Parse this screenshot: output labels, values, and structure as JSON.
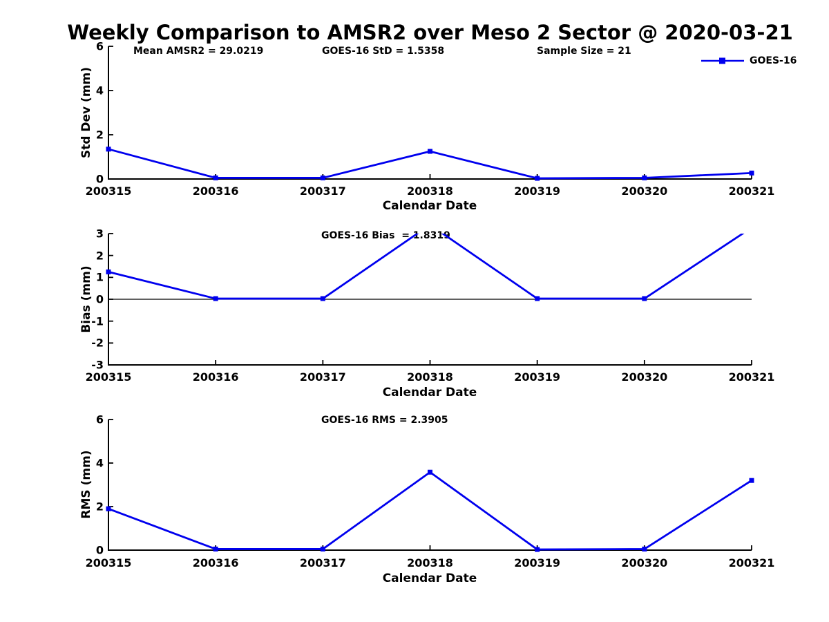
{
  "title": "Weekly Comparison to AMSR2 over Meso 2 Sector @ 2020-03-21",
  "header_stats": [
    "Mean AMSR2 = 29.0219",
    "GOES-16 StD = 1.5358",
    "Sample Size = 21"
  ],
  "legend": {
    "label": "GOES-16",
    "line_color": "#0000EE",
    "marker": "square"
  },
  "chart_data": [
    {
      "type": "line",
      "title": "",
      "ylabel": "Std Dev (mm)",
      "xlabel": "Calendar Date",
      "categories": [
        "200315",
        "200316",
        "200317",
        "200318",
        "200319",
        "200320",
        "200321"
      ],
      "series": [
        {
          "name": "GOES-16",
          "values": [
            1.35,
            0.05,
            0.05,
            1.25,
            0.03,
            0.05,
            0.27
          ]
        }
      ],
      "ylim": [
        0,
        6
      ],
      "yticks": [
        0,
        2,
        4,
        6
      ],
      "grid": false,
      "zero_line": false,
      "line_color": "#0000EE",
      "marker": "square"
    },
    {
      "type": "line",
      "title": "",
      "annotation": "GOES-16 Bias  = 1.8319",
      "ylabel": "Bias (mm)",
      "xlabel": "Calendar Date",
      "categories": [
        "200315",
        "200316",
        "200317",
        "200318",
        "200319",
        "200320",
        "200321"
      ],
      "series": [
        {
          "name": "GOES-16",
          "values": [
            1.25,
            0.03,
            0.03,
            3.4,
            0.03,
            0.03,
            3.27
          ]
        }
      ],
      "ylim": [
        -3,
        3
      ],
      "yticks": [
        -3,
        -2,
        -1,
        0,
        1,
        2,
        3
      ],
      "grid": false,
      "zero_line": true,
      "clip_to_axes": true,
      "line_color": "#0000EE",
      "marker": "square"
    },
    {
      "type": "line",
      "title": "",
      "annotation": "GOES-16 RMS = 2.3905",
      "ylabel": "RMS (mm)",
      "xlabel": "Calendar Date",
      "categories": [
        "200315",
        "200316",
        "200317",
        "200318",
        "200319",
        "200320",
        "200321"
      ],
      "series": [
        {
          "name": "GOES-16",
          "values": [
            1.9,
            0.05,
            0.05,
            3.58,
            0.03,
            0.05,
            3.2
          ]
        }
      ],
      "ylim": [
        0,
        6
      ],
      "yticks": [
        0,
        2,
        4,
        6
      ],
      "grid": false,
      "zero_line": false,
      "line_color": "#0000EE",
      "marker": "square"
    }
  ]
}
